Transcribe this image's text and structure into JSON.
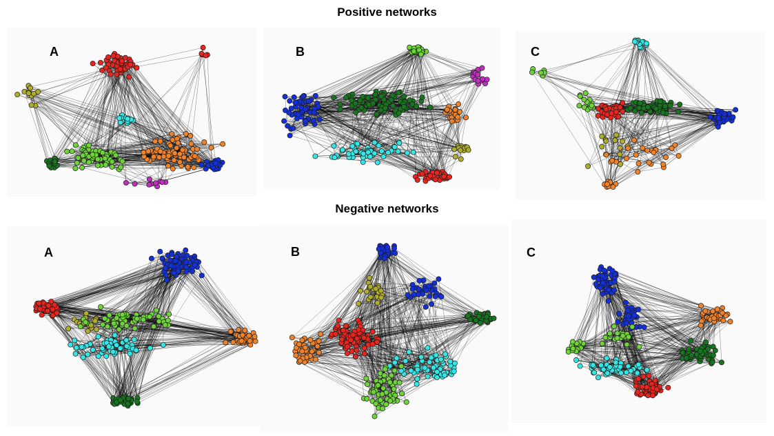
{
  "titles": {
    "positive": "Positive  networks",
    "negative": "Negative networks"
  },
  "colors": {
    "red": "#e8251f",
    "blue": "#1430d8",
    "cyan": "#35e6e6",
    "orange": "#f0822a",
    "light_green": "#6ed43a",
    "dark_green": "#17761f",
    "olive": "#b0ad2c",
    "magenta": "#c12fc1",
    "edge": "#000000",
    "panel_bg": "#fafafa"
  },
  "panels": [
    {
      "id": "pos-a",
      "label": "A",
      "clusters": [
        "red",
        "olive",
        "cyan",
        "light_green",
        "orange",
        "dark_green",
        "blue",
        "magenta"
      ]
    },
    {
      "id": "pos-b",
      "label": "B",
      "clusters": [
        "light_green",
        "magenta",
        "blue",
        "dark_green",
        "orange",
        "olive",
        "cyan",
        "red"
      ]
    },
    {
      "id": "pos-c",
      "label": "C",
      "clusters": [
        "cyan",
        "red",
        "dark_green",
        "blue",
        "light_green",
        "olive",
        "orange"
      ]
    },
    {
      "id": "neg-a",
      "label": "A",
      "clusters": [
        "blue",
        "red",
        "olive",
        "light_green",
        "cyan",
        "orange",
        "dark_green"
      ]
    },
    {
      "id": "neg-b",
      "label": "B",
      "clusters": [
        "blue",
        "olive",
        "red",
        "orange",
        "dark_green",
        "cyan",
        "light_green"
      ]
    },
    {
      "id": "neg-c",
      "label": "C",
      "clusters": [
        "blue",
        "orange",
        "light_green",
        "dark_green",
        "cyan",
        "red"
      ]
    }
  ]
}
